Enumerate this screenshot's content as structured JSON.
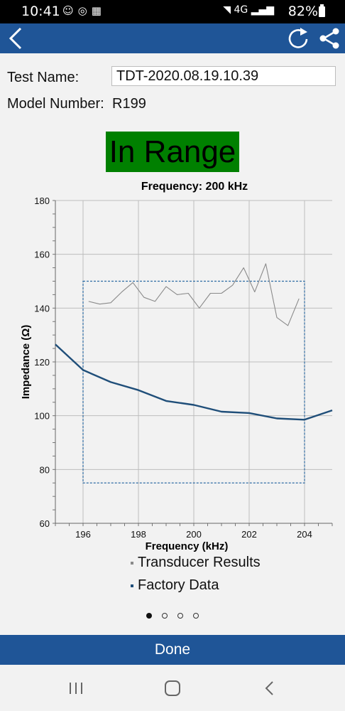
{
  "status": {
    "time": "10:41",
    "notification_icons": [
      "person-icon",
      "sync-icon",
      "app-icon"
    ],
    "network": "4G",
    "battery": "82%"
  },
  "toolbar": {
    "back_icon": "back-arrow-icon",
    "refresh_icon": "refresh-icon",
    "share_icon": "share-icon"
  },
  "form": {
    "test_name_label": "Test Name:",
    "test_name_value": "TDT-2020.08.19.10.39",
    "model_number_label": "Model Number:",
    "model_number_value": "R199"
  },
  "status_badge": {
    "text": "In Range",
    "color": "#008000"
  },
  "chart_data": {
    "type": "line",
    "title": "Frequency: 200 kHz",
    "xlabel": "Frequency (kHz)",
    "ylabel": "Impedance (Ω)",
    "xlim": [
      195,
      205
    ],
    "ylim": [
      60,
      180
    ],
    "xticks": [
      196,
      198,
      200,
      202,
      204
    ],
    "yticks": [
      60,
      80,
      100,
      120,
      140,
      160,
      180
    ],
    "grid": true,
    "range_box": {
      "x": [
        196,
        204
      ],
      "y": [
        75,
        150
      ]
    },
    "series": [
      {
        "name": "Transducer Results",
        "color": "#8a8a8a",
        "x": [
          196.2,
          196.6,
          197.0,
          197.4,
          197.8,
          198.2,
          198.6,
          199.0,
          199.4,
          199.8,
          200.2,
          200.6,
          201.0,
          201.4,
          201.8,
          202.2,
          202.6,
          203.0,
          203.4,
          203.8
        ],
        "y": [
          142.5,
          141.5,
          142.0,
          146.0,
          149.5,
          144.0,
          142.5,
          148.0,
          145.0,
          145.5,
          140.0,
          145.5,
          145.5,
          148.5,
          155.0,
          146.0,
          156.5,
          136.5,
          133.5,
          143.5
        ]
      },
      {
        "name": "Factory Data",
        "color": "#1f4e79",
        "x": [
          195.0,
          196.0,
          197.0,
          198.0,
          199.0,
          200.0,
          201.0,
          202.0,
          203.0,
          204.0,
          205.0
        ],
        "y": [
          126.5,
          117.0,
          112.5,
          109.5,
          105.5,
          104.0,
          101.5,
          101.0,
          99.0,
          98.5,
          102.0
        ]
      }
    ]
  },
  "pager": {
    "total": 4,
    "active": 0
  },
  "footer": {
    "done_label": "Done"
  },
  "nav": {
    "recents_icon": "recents-icon",
    "home_icon": "home-icon",
    "back_icon": "nav-back-icon"
  }
}
